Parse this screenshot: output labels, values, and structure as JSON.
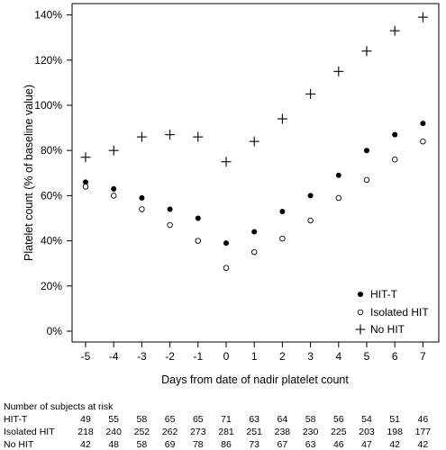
{
  "chart_data": {
    "type": "scatter",
    "xlabel": "Days from date of nadir platelet count",
    "ylabel": "Platelet count (% of baseline value)",
    "x": [
      -5,
      -4,
      -3,
      -2,
      -1,
      0,
      1,
      2,
      3,
      4,
      5,
      6,
      7
    ],
    "x_ticks": [
      "-5",
      "-4",
      "-3",
      "-2",
      "-1",
      "0",
      "1",
      "2",
      "3",
      "4",
      "5",
      "6",
      "7"
    ],
    "y_ticks": [
      "0%",
      "20%",
      "40%",
      "60%",
      "80%",
      "100%",
      "120%",
      "140%"
    ],
    "ylim": [
      0,
      140
    ],
    "xlim": [
      -5,
      7
    ],
    "grid": false,
    "legend_position": "bottom-right",
    "series": [
      {
        "name": "HIT-T",
        "marker": "filled-circle",
        "color": "#000000",
        "values": [
          66,
          63,
          59,
          54,
          50,
          39,
          44,
          53,
          60,
          69,
          80,
          87,
          92
        ]
      },
      {
        "name": "Isolated HIT",
        "marker": "open-circle",
        "color": "#000000",
        "values": [
          64,
          60,
          54,
          47,
          40,
          28,
          35,
          41,
          49,
          59,
          67,
          76,
          84
        ]
      },
      {
        "name": "No HIT",
        "marker": "plus",
        "color": "#000000",
        "values": [
          77,
          80,
          86,
          87,
          86,
          75,
          84,
          94,
          105,
          115,
          124,
          133,
          139
        ]
      }
    ]
  },
  "risk_table": {
    "title": "Number of subjects at risk",
    "rows": [
      {
        "label": "HIT-T",
        "values": [
          "49",
          "55",
          "58",
          "65",
          "65",
          "71",
          "63",
          "64",
          "58",
          "56",
          "54",
          "51",
          "46"
        ]
      },
      {
        "label": "Isolated HIT",
        "values": [
          "218",
          "240",
          "252",
          "262",
          "273",
          "281",
          "251",
          "238",
          "230",
          "225",
          "203",
          "198",
          "177"
        ]
      },
      {
        "label": "No HIT",
        "values": [
          "42",
          "48",
          "58",
          "69",
          "78",
          "86",
          "73",
          "67",
          "63",
          "46",
          "47",
          "42",
          "42"
        ]
      }
    ]
  }
}
